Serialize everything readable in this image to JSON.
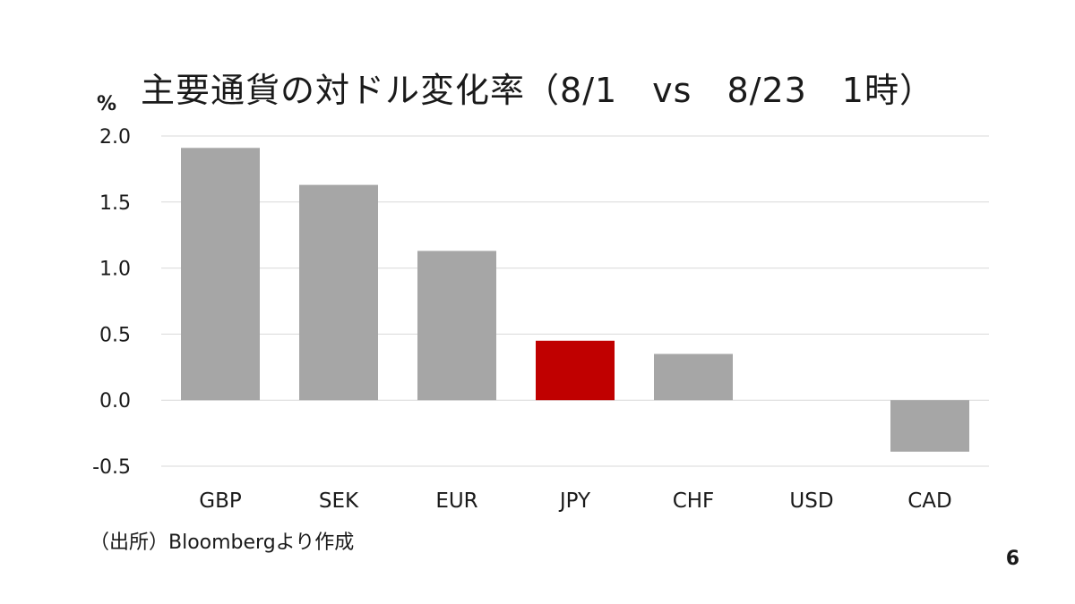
{
  "title": "主要通貨の対ドル変化率（8/1　vs　8/23　1時）",
  "unit_label": "%",
  "source": "（出所）Bloombergより作成",
  "page_number": "6",
  "colors": {
    "bar": "#a6a6a6",
    "highlight": "#c00000",
    "grid": "#d9d9d9"
  },
  "chart_data": {
    "type": "bar",
    "title": "主要通貨の対ドル変化率（8/1　vs　8/23　1時）",
    "ylabel": "%",
    "xlabel": "",
    "categories": [
      "GBP",
      "SEK",
      "EUR",
      "JPY",
      "CHF",
      "USD",
      "CAD"
    ],
    "values": [
      1.91,
      1.63,
      1.13,
      0.45,
      0.35,
      0.0,
      -0.39
    ],
    "highlight": "JPY",
    "ylim": [
      -0.5,
      2.0
    ],
    "yticks": [
      2.0,
      1.5,
      1.0,
      0.5,
      0.0,
      -0.5
    ],
    "ytick_labels": [
      "2.0",
      "1.5",
      "1.0",
      "0.5",
      "0.0",
      "-0.5"
    ],
    "grid": true,
    "legend": "none"
  }
}
